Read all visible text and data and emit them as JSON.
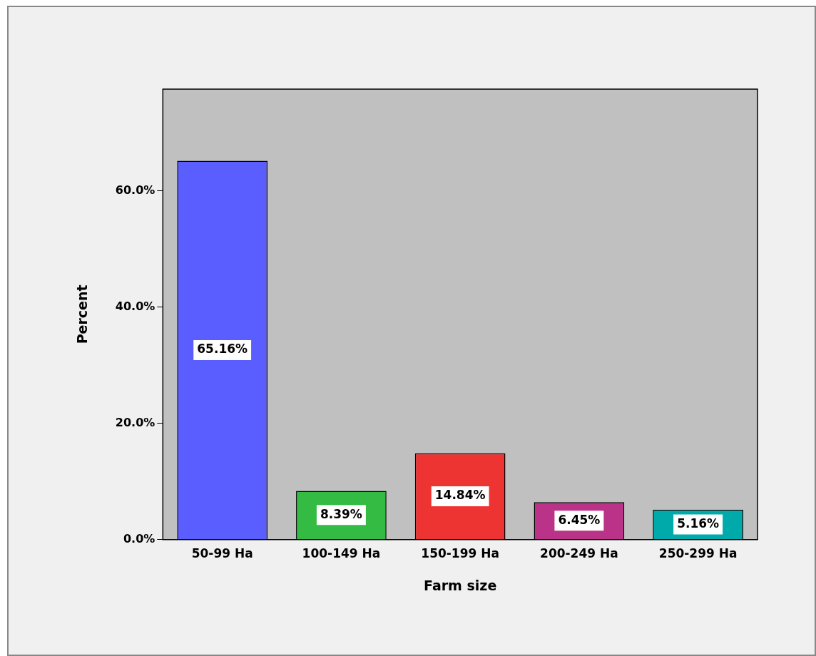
{
  "chart_data": {
    "type": "bar",
    "xlabel": "Farm size",
    "ylabel": "Percent",
    "categories": [
      "50-99 Ha",
      "100-149 Ha",
      "150-199 Ha",
      "200-249 Ha",
      "250-299 Ha"
    ],
    "values": [
      65.16,
      8.39,
      14.84,
      6.45,
      5.16
    ],
    "colors": [
      "#5b5eff",
      "#33bb44",
      "#ee3333",
      "#bb3388",
      "#00aaaa"
    ],
    "value_labels": [
      "65.16%",
      "8.39%",
      "14.84%",
      "6.45%",
      "5.16%"
    ],
    "ylim": [
      0,
      77.5
    ],
    "yticks": [
      {
        "value": 0,
        "label": "0.0%"
      },
      {
        "value": 20,
        "label": "20.0%"
      },
      {
        "value": 40,
        "label": "40.0%"
      },
      {
        "value": 60,
        "label": "60.0%"
      }
    ],
    "grid": false,
    "legend": false
  }
}
